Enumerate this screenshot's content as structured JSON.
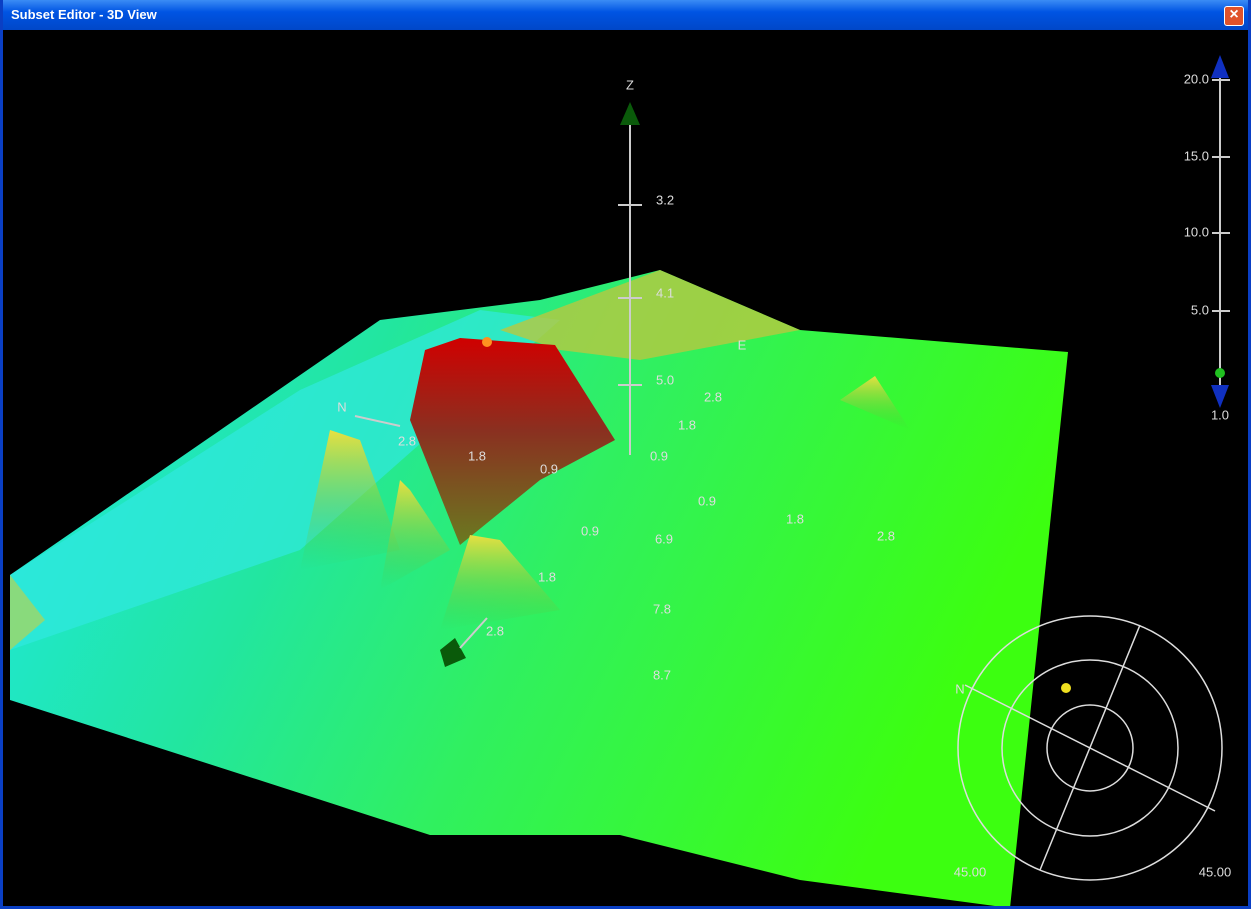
{
  "window": {
    "title": "Subset Editor - 3D View",
    "close": "×"
  },
  "axes": {
    "z": "Z",
    "n": "N",
    "e": "E"
  },
  "z_ticks": [
    "3.2",
    "4.1",
    "5.0"
  ],
  "depth_labels": [
    "2.8",
    "1.8",
    "0.9",
    "0.9",
    "1.8",
    "2.8",
    "0.9",
    "1.8",
    "2.8",
    "0.9",
    "6.9",
    "1.8",
    "7.8",
    "8.7",
    "2.8"
  ],
  "scale_ticks": [
    "20.0",
    "15.0",
    "10.0",
    "5.0",
    "1.0"
  ],
  "compass": {
    "north": "N",
    "tilt": "45.00",
    "rotation": "45.00"
  }
}
